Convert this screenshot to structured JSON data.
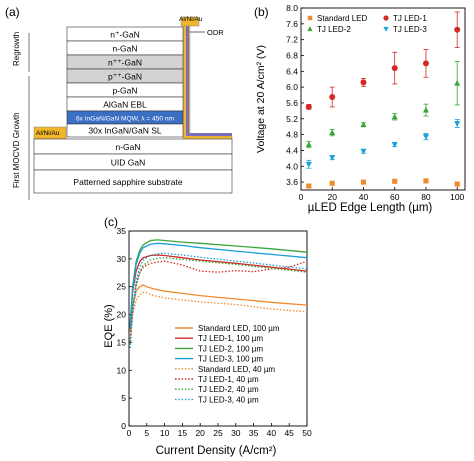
{
  "chart_data": [
    {
      "panel": "(a)",
      "type": "diagram",
      "side_labels": [
        "Regrowth",
        "First MOCVD Growth"
      ],
      "contact_top": "Al/Ni/Au",
      "contact_left": "Al/Ni/Au",
      "odr_label": "ODR",
      "layers": [
        "n⁺-GaN",
        "n-GaN",
        "n⁺⁺-GaN",
        "p⁺⁺-GaN",
        "p-GaN",
        "AlGaN EBL",
        "6x InGaN/GaN MQW, λ = 450 nm",
        "30x InGaN/GaN SL",
        "n-GaN",
        "UID GaN",
        "Patterned sapphire substrate"
      ]
    },
    {
      "panel": "(b)",
      "type": "scatter",
      "xlabel": "µLED Edge Length (µm)",
      "ylabel": "Voltage at 20 A/cm² (V)",
      "xlim": [
        0,
        105
      ],
      "ylim": [
        3.4,
        8.0
      ],
      "xticks": [
        0,
        20,
        40,
        60,
        80,
        100
      ],
      "xtick_labels": [
        "0",
        "20",
        "40",
        "60",
        "80",
        "100"
      ],
      "yticks": [
        3.6,
        4.0,
        4.4,
        4.8,
        5.2,
        5.6,
        6.0,
        6.4,
        6.8,
        7.2,
        7.6,
        8.0
      ],
      "ytick_labels": [
        "3.6",
        "4.0",
        "4.4",
        "4.8",
        "5.2",
        "5.6",
        "6.0",
        "6.4",
        "6.8",
        "7.2",
        "7.6",
        "8.0"
      ],
      "legend": "top",
      "series": [
        {
          "name": "Standard LED",
          "marker": "square",
          "color": "#f08a2e",
          "x": [
            5,
            20,
            40,
            60,
            80,
            100
          ],
          "y": [
            3.5,
            3.57,
            3.6,
            3.62,
            3.63,
            3.55
          ],
          "err": [
            0.03,
            0.03,
            0.03,
            0.04,
            0.05,
            0.05
          ]
        },
        {
          "name": "TJ LED-1",
          "marker": "circle",
          "color": "#d42a24",
          "x": [
            5,
            20,
            40,
            60,
            80,
            100
          ],
          "y": [
            5.5,
            5.75,
            6.12,
            6.48,
            6.6,
            7.45
          ],
          "err": [
            0.06,
            0.25,
            0.1,
            0.4,
            0.35,
            0.45
          ]
        },
        {
          "name": "TJ LED-2",
          "marker": "triangle-up",
          "color": "#3aa63a",
          "x": [
            5,
            20,
            40,
            60,
            80,
            100
          ],
          "y": [
            4.55,
            4.85,
            5.05,
            5.25,
            5.42,
            6.1
          ],
          "err": [
            0.08,
            0.08,
            0.05,
            0.08,
            0.15,
            0.55
          ]
        },
        {
          "name": "TJ LED-3",
          "marker": "triangle-down",
          "color": "#1aa0d8",
          "x": [
            5,
            20,
            40,
            60,
            80,
            100
          ],
          "y": [
            4.05,
            4.22,
            4.38,
            4.55,
            4.75,
            5.08
          ],
          "err": [
            0.1,
            0.05,
            0.05,
            0.05,
            0.08,
            0.1
          ]
        }
      ]
    },
    {
      "panel": "(c)",
      "type": "line",
      "xlabel": "Current Density (A/cm²)",
      "ylabel": "EQE (%)",
      "xlim": [
        0,
        50
      ],
      "ylim": [
        0,
        35
      ],
      "xticks": [
        0,
        5,
        10,
        15,
        20,
        25,
        30,
        35,
        40,
        45,
        50
      ],
      "xtick_labels": [
        "0",
        "5",
        "10",
        "15",
        "20",
        "25",
        "30",
        "35",
        "40",
        "45",
        "50"
      ],
      "yticks": [
        0,
        5,
        10,
        15,
        20,
        25,
        30,
        35
      ],
      "ytick_labels": [
        "0",
        "5",
        "10",
        "15",
        "20",
        "25",
        "30",
        "35"
      ],
      "legend": "bottom-center",
      "series": [
        {
          "name": "Standard LED, 100 µm",
          "color": "#f08a2e",
          "dash": "solid",
          "x": [
            0.3,
            1,
            2,
            3,
            4,
            5,
            7,
            10,
            15,
            20,
            30,
            40,
            50
          ],
          "y": [
            17,
            21.5,
            24.2,
            25.0,
            25.3,
            25.0,
            24.6,
            24.2,
            23.8,
            23.4,
            22.8,
            22.2,
            21.7
          ]
        },
        {
          "name": "TJ LED-1, 100 µm",
          "color": "#d42a24",
          "dash": "solid",
          "x": [
            0.3,
            1,
            2,
            3,
            4,
            6,
            8,
            10,
            15,
            20,
            30,
            40,
            50
          ],
          "y": [
            18,
            24,
            27.8,
            29.5,
            30.2,
            30.6,
            30.7,
            30.6,
            30.2,
            29.8,
            29.2,
            28.5,
            27.8
          ]
        },
        {
          "name": "TJ LED-2, 100 µm",
          "color": "#3aa63a",
          "dash": "solid",
          "x": [
            0.3,
            1,
            2,
            3,
            4,
            6,
            8,
            10,
            15,
            20,
            30,
            40,
            50
          ],
          "y": [
            18,
            25,
            29.5,
            31.5,
            32.5,
            33.3,
            33.4,
            33.3,
            33.0,
            32.8,
            32.3,
            31.8,
            31.2
          ]
        },
        {
          "name": "TJ LED-3, 100 µm",
          "color": "#1aa0d8",
          "dash": "solid",
          "x": [
            0.3,
            1,
            2,
            3,
            4,
            6,
            8,
            10,
            15,
            20,
            30,
            40,
            50
          ],
          "y": [
            17.5,
            24.5,
            29.0,
            31.0,
            32.0,
            32.6,
            32.8,
            32.7,
            32.4,
            32.0,
            31.4,
            30.8,
            30.2
          ]
        },
        {
          "name": "Standard LED, 40 µm",
          "color": "#f08a2e",
          "dash": "dotted",
          "x": [
            0.3,
            1,
            2,
            3,
            4,
            5,
            7,
            10,
            15,
            20,
            30,
            40,
            50
          ],
          "y": [
            15,
            20,
            22.5,
            23.5,
            24.0,
            23.9,
            23.4,
            23.0,
            22.6,
            22.3,
            21.8,
            21.0,
            20.5
          ]
        },
        {
          "name": "TJ LED-1, 40 µm",
          "color": "#d42a24",
          "dash": "dotted",
          "x": [
            0.3,
            1,
            2,
            3,
            4,
            6,
            8,
            10,
            15,
            20,
            25,
            30,
            35,
            40,
            45,
            50
          ],
          "y": [
            15,
            21,
            25.5,
            27.5,
            28.5,
            29.2,
            29.4,
            29.6,
            28.9,
            27.8,
            27.6,
            27.9,
            27.7,
            28.2,
            28.5,
            29.6
          ]
        },
        {
          "name": "TJ LED-2, 40 µm",
          "color": "#3aa63a",
          "dash": "dotted",
          "x": [
            0.3,
            1,
            2,
            3,
            4,
            6,
            8,
            10,
            15,
            20,
            30,
            40,
            50
          ],
          "y": [
            14,
            20,
            25.0,
            27.5,
            28.8,
            29.8,
            30.1,
            30.2,
            29.9,
            29.6,
            29.0,
            28.3,
            27.6
          ]
        },
        {
          "name": "TJ LED-3, 40 µm",
          "color": "#1aa0d8",
          "dash": "dotted",
          "x": [
            0.3,
            1,
            2,
            3,
            4,
            6,
            8,
            10,
            15,
            20,
            30,
            40,
            50
          ],
          "y": [
            14,
            21,
            26.0,
            28.5,
            29.8,
            30.6,
            30.9,
            31.0,
            30.7,
            30.3,
            29.6,
            28.9,
            28.2
          ]
        }
      ]
    }
  ]
}
